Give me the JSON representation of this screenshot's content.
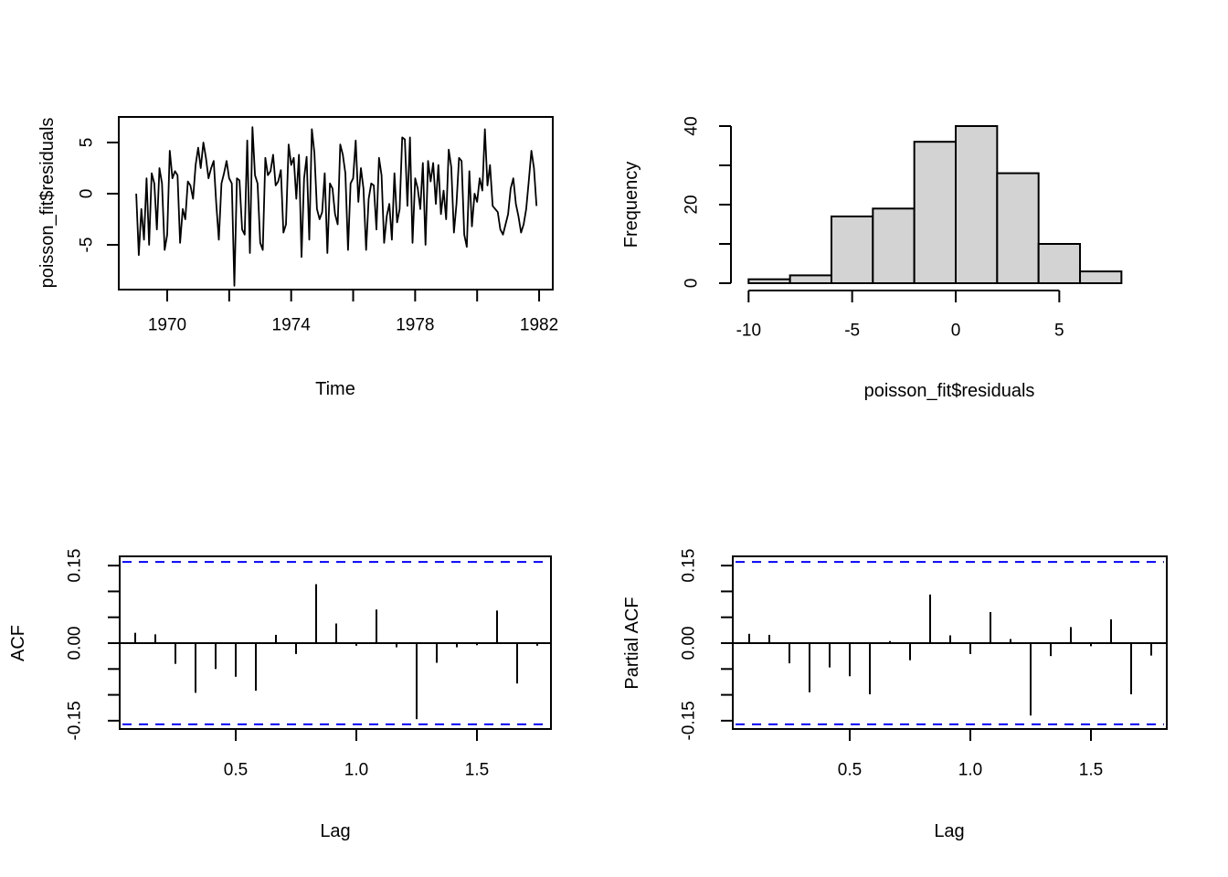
{
  "figure": {
    "description": "2x2 R diagnostic plots of poisson_fit$residuals: time series, histogram, ACF, partial ACF"
  },
  "colors": {
    "line": "#000000",
    "confidence_band": "#0000ff",
    "bar_fill": "#d3d3d3",
    "bar_stroke": "#000000",
    "text": "#000000"
  },
  "chart_data": [
    {
      "type": "line",
      "title": "",
      "xlabel": "Time",
      "ylabel": "poisson_fit$residuals",
      "x_start": 1969.0,
      "points_per_year": 12,
      "xlim": [
        1968.45,
        1982.45
      ],
      "ylim": [
        -9.4,
        7.5
      ],
      "x_ticks": [
        1970,
        1972,
        1974,
        1976,
        1978,
        1980,
        1982
      ],
      "x_tick_labels": [
        "1970",
        "",
        "1974",
        "",
        "1978",
        "",
        "1982"
      ],
      "y_ticks": [
        5,
        0,
        -5
      ],
      "y_tick_labels": [
        "5",
        "0",
        "-5"
      ],
      "grid": false,
      "values": [
        0,
        -6,
        -1.5,
        -4.5,
        1.5,
        -5,
        2,
        1,
        -3.5,
        2.5,
        1,
        -5.5,
        -4,
        4.2,
        1.5,
        2.2,
        1.8,
        -4.8,
        -1.5,
        -2.5,
        1.2,
        0.8,
        -0.5,
        2.8,
        4.5,
        2.5,
        5.0,
        3.5,
        1.5,
        2.5,
        3.2,
        -1.0,
        -4.5,
        1.0,
        2.0,
        3.2,
        1.5,
        1.0,
        -9.0,
        1.5,
        1.3,
        -3.5,
        -4.0,
        5.2,
        -5.8,
        6.5,
        1.8,
        1.0,
        -4.8,
        -5.5,
        3.5,
        1.8,
        2.2,
        3.8,
        0.8,
        1.2,
        2.3,
        -3.8,
        -3.0,
        4.8,
        2.8,
        3.5,
        -0.5,
        3.8,
        -6.2,
        1.5,
        3.6,
        -4.5,
        6.3,
        4.0,
        -1.5,
        -2.5,
        -1.8,
        2.0,
        -5.8,
        1.0,
        0.5,
        -2.0,
        -3.0,
        4.8,
        3.8,
        2.0,
        -5.5,
        1.0,
        1.5,
        5.2,
        -0.8,
        2.5,
        0.5,
        -5.5,
        -0.5,
        1.0,
        0.8,
        -3.5,
        3.5,
        1.8,
        -4.8,
        -2.2,
        -1.0,
        -4.5,
        2.0,
        -2.8,
        -1.5,
        5.5,
        5.3,
        -1.2,
        5.5,
        -4.8,
        1.5,
        0.5,
        -1.5,
        3.0,
        -5.0,
        3.2,
        1.2,
        3.0,
        -1.0,
        2.8,
        -2.0,
        0.3,
        -2.5,
        4.3,
        2.6,
        -3.8,
        -1.0,
        3.5,
        3.2,
        -4.0,
        -5.2,
        2.2,
        -3.2,
        0.0,
        -0.8,
        1.5,
        0.3,
        6.3,
        0.8,
        2.8,
        -1.2,
        -1.5,
        -1.8,
        -3.5,
        -4.0,
        -3.0,
        -2.0,
        0.5,
        1.5,
        -1.0,
        -2.2,
        -3.8,
        -3.0,
        -1.5,
        1.2,
        4.2,
        2.5,
        -1.2
      ]
    },
    {
      "type": "bar",
      "subtype": "histogram",
      "title": "",
      "xlabel": "poisson_fit$residuals",
      "ylabel": "Frequency",
      "bin_start": -10,
      "bin_width": 2,
      "bin_edges": [
        -10,
        -8,
        -6,
        -4,
        -2,
        0,
        2,
        4,
        6,
        8
      ],
      "counts": [
        1,
        2,
        17,
        19,
        36,
        40,
        28,
        10,
        3
      ],
      "x_ticks": [
        -10,
        -5,
        0,
        5
      ],
      "x_tick_labels": [
        "-10",
        "-5",
        "0",
        "5"
      ],
      "y_ticks": [
        0,
        10,
        20,
        30,
        40
      ],
      "y_tick_labels": [
        "0",
        "",
        "20",
        "",
        "40"
      ],
      "ylim": [
        0,
        40
      ],
      "grid": false
    },
    {
      "type": "bar",
      "subtype": "acf",
      "title": "",
      "xlabel": "Lag",
      "ylabel": "ACF",
      "lag_interval": 0.08333,
      "confidence_limit": 0.157,
      "x_ticks": [
        0.5,
        1.0,
        1.5
      ],
      "x_tick_labels": [
        "0.5",
        "1.0",
        "1.5"
      ],
      "y_ticks": [
        -0.15,
        -0.1,
        -0.05,
        0.0,
        0.05,
        0.1,
        0.15
      ],
      "y_tick_labels": [
        "-0.15",
        "",
        "",
        "0.00",
        "",
        "",
        "0.15"
      ],
      "ylim": [
        -0.166,
        0.168
      ],
      "grid": false,
      "values": [
        0.02,
        0.017,
        -0.04,
        -0.096,
        -0.05,
        -0.065,
        -0.092,
        0.016,
        -0.021,
        0.114,
        0.038,
        -0.005,
        0.065,
        -0.008,
        -0.147,
        -0.038,
        -0.008,
        -0.004,
        0.063,
        -0.078,
        -0.005
      ]
    },
    {
      "type": "bar",
      "subtype": "pacf",
      "title": "",
      "xlabel": "Lag",
      "ylabel": "Partial ACF",
      "lag_interval": 0.08333,
      "confidence_limit": 0.157,
      "x_ticks": [
        0.5,
        1.0,
        1.5
      ],
      "x_tick_labels": [
        "0.5",
        "1.0",
        "1.5"
      ],
      "y_ticks": [
        -0.15,
        -0.1,
        -0.05,
        0.0,
        0.05,
        0.1,
        0.15
      ],
      "y_tick_labels": [
        "-0.15",
        "",
        "",
        "0.00",
        "",
        "",
        "0.15"
      ],
      "ylim": [
        -0.166,
        0.168
      ],
      "grid": false,
      "values": [
        0.018,
        0.016,
        -0.039,
        -0.095,
        -0.047,
        -0.064,
        -0.099,
        0.004,
        -0.033,
        0.094,
        0.015,
        -0.021,
        0.06,
        0.008,
        -0.14,
        -0.025,
        0.031,
        -0.006,
        0.046,
        -0.099,
        -0.024
      ]
    }
  ]
}
